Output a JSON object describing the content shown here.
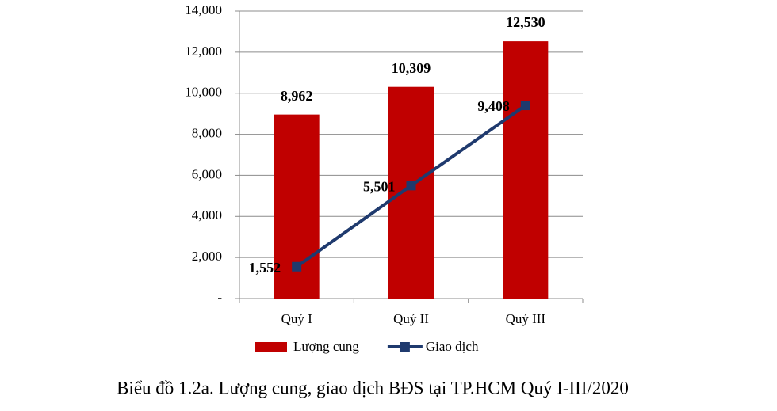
{
  "chart_data": {
    "type": "bar",
    "caption": "Biểu đồ 1.2a. Lượng cung, giao dịch BĐS tại TP.HCM Quý I-III/2020",
    "categories": [
      "Quý I",
      "Quý II",
      "Quý III"
    ],
    "series": [
      {
        "name": "Lượng cung",
        "type": "bar",
        "color": "#c00000",
        "values": [
          8962,
          10309,
          12530
        ],
        "value_labels": [
          "8,962",
          "10,309",
          "12,530"
        ]
      },
      {
        "name": "Giao dịch",
        "type": "line",
        "color": "#1f3a6e",
        "values": [
          1552,
          5501,
          9408
        ],
        "value_labels": [
          "1,552",
          "5,501",
          "9,408"
        ]
      }
    ],
    "ylim": [
      0,
      14000
    ],
    "yticks": [
      {
        "value": 0,
        "label": "-"
      },
      {
        "value": 2000,
        "label": "2,000"
      },
      {
        "value": 4000,
        "label": "4,000"
      },
      {
        "value": 6000,
        "label": "6,000"
      },
      {
        "value": 8000,
        "label": "8,000"
      },
      {
        "value": 10000,
        "label": "10,000"
      },
      {
        "value": 12000,
        "label": "12,000"
      },
      {
        "value": 14000,
        "label": "14,000"
      }
    ],
    "grid": true
  }
}
